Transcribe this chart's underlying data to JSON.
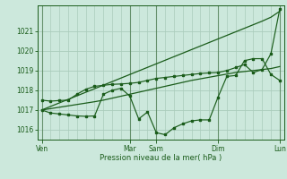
{
  "xlabel": "Pression niveau de la mer( hPa )",
  "bg_color": "#cce8dc",
  "grid_color": "#aaccbb",
  "line_color": "#1a5c1a",
  "vline_color": "#336633",
  "ylim": [
    1015.5,
    1022.3
  ],
  "yticks": [
    1016,
    1017,
    1018,
    1019,
    1020,
    1021
  ],
  "xtick_labels": [
    "Ven",
    "Mar",
    "Sam",
    "Dim",
    "Lun"
  ],
  "xtick_positions": [
    0,
    10,
    13,
    20,
    27
  ],
  "total_points": 28,
  "upper_band": [
    1017.0,
    1017.18,
    1017.36,
    1017.54,
    1017.72,
    1017.9,
    1018.08,
    1018.26,
    1018.44,
    1018.62,
    1018.8,
    1018.98,
    1019.16,
    1019.34,
    1019.52,
    1019.7,
    1019.88,
    1020.06,
    1020.24,
    1020.42,
    1020.6,
    1020.78,
    1020.96,
    1021.14,
    1021.32,
    1021.5,
    1021.7,
    1022.0
  ],
  "lower_band": [
    1017.0,
    1017.07,
    1017.14,
    1017.21,
    1017.28,
    1017.35,
    1017.42,
    1017.5,
    1017.6,
    1017.7,
    1017.8,
    1017.9,
    1018.0,
    1018.1,
    1018.2,
    1018.3,
    1018.4,
    1018.5,
    1018.58,
    1018.66,
    1018.74,
    1018.82,
    1018.9,
    1018.95,
    1019.0,
    1019.05,
    1019.1,
    1019.2
  ],
  "actual_line": [
    1017.0,
    1016.85,
    1016.8,
    1016.75,
    1016.7,
    1016.68,
    1016.7,
    1017.8,
    1018.0,
    1018.1,
    1017.7,
    1016.55,
    1016.9,
    1015.85,
    1015.75,
    1016.1,
    1016.3,
    1016.45,
    1016.5,
    1016.5,
    1017.65,
    1018.7,
    1018.75,
    1019.5,
    1019.6,
    1019.6,
    1018.8,
    1018.5
  ],
  "second_line": [
    1017.5,
    1017.45,
    1017.48,
    1017.5,
    1017.8,
    1018.05,
    1018.2,
    1018.25,
    1018.3,
    1018.32,
    1018.35,
    1018.4,
    1018.5,
    1018.6,
    1018.65,
    1018.7,
    1018.75,
    1018.8,
    1018.85,
    1018.88,
    1018.9,
    1019.0,
    1019.15,
    1019.3,
    1018.9,
    1019.05,
    1019.85,
    1022.1
  ]
}
